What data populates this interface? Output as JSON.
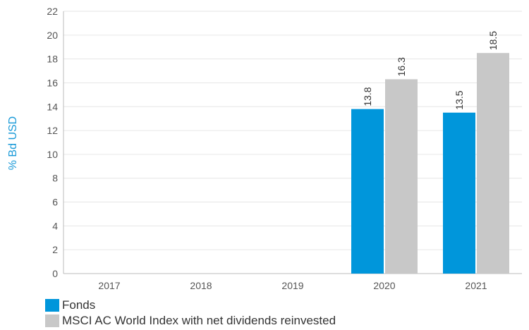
{
  "chart_data": {
    "type": "bar",
    "categories": [
      "2017",
      "2018",
      "2019",
      "2020",
      "2021"
    ],
    "series": [
      {
        "name": "Fonds",
        "values": [
          null,
          null,
          null,
          13.8,
          13.5
        ],
        "color": "#0096db"
      },
      {
        "name": "MSCI AC World Index with net dividends reinvested",
        "values": [
          null,
          null,
          null,
          16.3,
          18.5
        ],
        "color": "#c8c8c8"
      }
    ],
    "ylabel": "% Bd USD",
    "xlabel": "",
    "ylim": [
      0,
      22
    ],
    "yticks": [
      0,
      2,
      4,
      6,
      8,
      10,
      12,
      14,
      16,
      18,
      20,
      22
    ],
    "grid": true,
    "legend_position": "bottom-left"
  }
}
